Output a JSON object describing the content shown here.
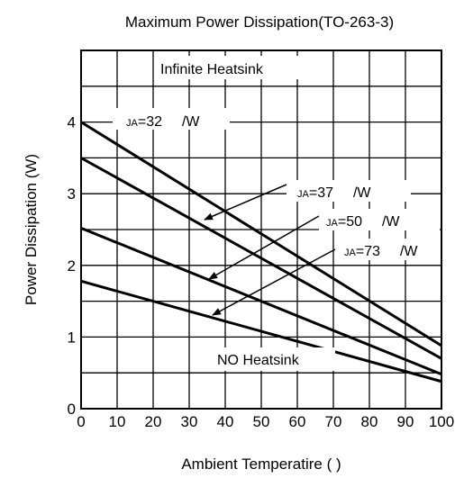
{
  "chart_data": {
    "type": "line",
    "title": "Maximum Power Dissipation(TO-263-3)",
    "xlabel": "Ambient Temperatire (   )",
    "ylabel": "Power Dissipation (W)",
    "xlim": [
      0,
      100
    ],
    "ylim": [
      0,
      5
    ],
    "grid": true,
    "x_ticks": [
      "0",
      "10",
      "20",
      "30",
      "40",
      "50",
      "60",
      "70",
      "80",
      "90",
      "100"
    ],
    "y_ticks": [
      "0",
      "1",
      "2",
      "3",
      "4"
    ],
    "series": [
      {
        "x": [
          0,
          100
        ],
        "y": [
          4.0,
          0.88
        ]
      },
      {
        "x": [
          0,
          100
        ],
        "y": [
          3.5,
          0.7
        ]
      },
      {
        "x": [
          0,
          100
        ],
        "y": [
          2.52,
          0.48
        ]
      },
      {
        "x": [
          0,
          100
        ],
        "y": [
          1.78,
          0.38
        ]
      }
    ],
    "annotations": {
      "infinite": "Infinite Heatsink",
      "none": "NO Heatsink",
      "r32": {
        "sub": "JA",
        "val": "=32",
        "unit": "/W"
      },
      "r37": {
        "sub": "JA",
        "val": "=37",
        "unit": "/W"
      },
      "r50": {
        "sub": "JA",
        "val": "=50",
        "unit": "/W"
      },
      "r73": {
        "sub": "JA",
        "val": "=73",
        "unit": "/W"
      }
    }
  }
}
